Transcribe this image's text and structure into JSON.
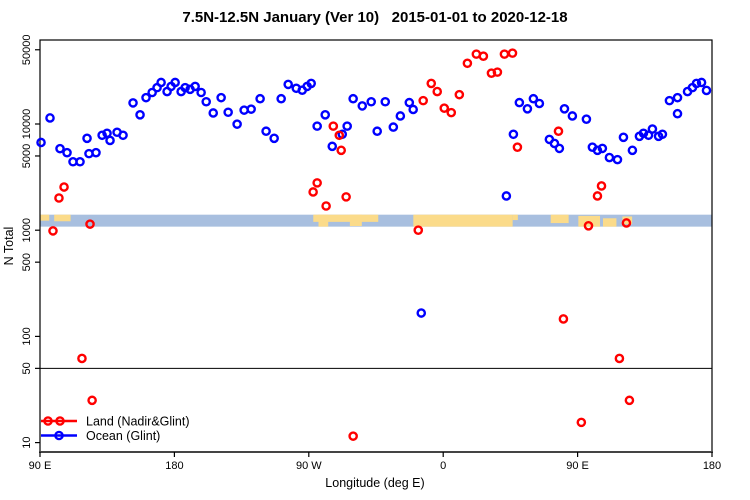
{
  "title": "7.5N-12.5N January (Ver 10)   2015-01-01 to 2020-12-18",
  "chart_data": {
    "type": "scatter",
    "title": "7.5N-12.5N January (Ver 10)   2015-01-01 to 2020-12-18",
    "xlabel": "Longitude (deg E)",
    "ylabel": "N Total",
    "x_axis": {
      "range": [
        90,
        540
      ],
      "tick_values": [
        90,
        180,
        270,
        360,
        450,
        540
      ],
      "tick_labels": [
        "90 E",
        "180",
        "90 W",
        "0",
        "90 E",
        "180"
      ]
    },
    "y_axis": {
      "scale": "log10",
      "range": [
        7,
        64000
      ],
      "tick_values": [
        10,
        50,
        100,
        500,
        1000,
        5000,
        10000,
        50000
      ],
      "tick_labels": [
        "10",
        "50",
        "100",
        "500",
        "1000",
        "5000",
        "10000",
        "50000"
      ]
    },
    "grid": "off",
    "reference_line_n": 50,
    "map_band": {
      "description": "world-map strip for latitude band 7.5N-12.5N",
      "ocean_color": "#a8bfdf",
      "land_color": "#fbdb8a",
      "n_range": [
        1080,
        1400
      ],
      "land_patches": [
        {
          "lon": [
            90,
            96.2
          ],
          "v": [
            0,
            0.5
          ]
        },
        {
          "lon": [
            99.5,
            110.5
          ],
          "v": [
            0,
            0.55
          ]
        },
        {
          "lon": [
            273,
            316.5
          ],
          "v": [
            0,
            0.6
          ]
        },
        {
          "lon": [
            276.5,
            283
          ],
          "v": [
            0,
            1
          ]
        },
        {
          "lon": [
            297.5,
            305.5
          ],
          "v": [
            0,
            0.95
          ]
        },
        {
          "lon": [
            340,
            406.5
          ],
          "v": [
            0,
            1
          ]
        },
        {
          "lon": [
            406.5,
            410
          ],
          "v": [
            0,
            0.45
          ]
        },
        {
          "lon": [
            432,
            444
          ],
          "v": [
            0,
            0.7
          ]
        },
        {
          "lon": [
            450.5,
            465
          ],
          "v": [
            0.1,
            1
          ]
        },
        {
          "lon": [
            467,
            476
          ],
          "v": [
            0.3,
            1
          ]
        },
        {
          "lon": [
            480,
            486.5
          ],
          "v": [
            0.15,
            0.8
          ]
        }
      ]
    },
    "legend": {
      "position": "bottom-left"
    },
    "series": [
      {
        "name": "Ocean (Glint)",
        "color": "#0000ff",
        "points": [
          [
            90.7,
            6700
          ],
          [
            96.7,
            11400
          ],
          [
            103.4,
            5860
          ],
          [
            108.1,
            5370
          ],
          [
            112.1,
            4410
          ],
          [
            116.8,
            4410
          ],
          [
            121.5,
            7330
          ],
          [
            122.8,
            5260
          ],
          [
            127.5,
            5370
          ],
          [
            131.6,
            7830
          ],
          [
            134.9,
            8180
          ],
          [
            136.9,
            7000
          ],
          [
            141.6,
            8360
          ],
          [
            145.6,
            7830
          ],
          [
            152.3,
            15800
          ],
          [
            157.0,
            12200
          ],
          [
            161.0,
            17700
          ],
          [
            165.1,
            19800
          ],
          [
            168.4,
            22000
          ],
          [
            171.1,
            24600
          ],
          [
            175.1,
            20200
          ],
          [
            177.8,
            22600
          ],
          [
            180.5,
            24600
          ],
          [
            184.5,
            20200
          ],
          [
            187.2,
            22000
          ],
          [
            190.5,
            21200
          ],
          [
            193.9,
            22600
          ],
          [
            197.9,
            19800
          ],
          [
            201.3,
            16200
          ],
          [
            206.0,
            12700
          ],
          [
            211.3,
            17700
          ],
          [
            216.0,
            12900
          ],
          [
            222.0,
            9970
          ],
          [
            226.7,
            13500
          ],
          [
            231.4,
            13800
          ],
          [
            237.4,
            17300
          ],
          [
            241.4,
            8550
          ],
          [
            246.8,
            7330
          ],
          [
            251.5,
            17300
          ],
          [
            256.2,
            23600
          ],
          [
            261.6,
            21700
          ],
          [
            265.6,
            20800
          ],
          [
            268.9,
            22600
          ],
          [
            271.6,
            24100
          ],
          [
            275.6,
            9550
          ],
          [
            281.0,
            12200
          ],
          [
            285.7,
            6160
          ],
          [
            292.4,
            8000
          ],
          [
            295.7,
            9550
          ],
          [
            299.7,
            17300
          ],
          [
            305.8,
            14800
          ],
          [
            311.8,
            16200
          ],
          [
            315.8,
            8550
          ],
          [
            321.2,
            16200
          ],
          [
            326.6,
            9350
          ],
          [
            331.3,
            11900
          ],
          [
            337.3,
            15900
          ],
          [
            339.9,
            13700
          ],
          [
            345.3,
            166
          ],
          [
            402.3,
            2100
          ],
          [
            407.0,
            8000
          ],
          [
            411.0,
            15900
          ],
          [
            416.4,
            13900
          ],
          [
            420.4,
            17300
          ],
          [
            424.4,
            15600
          ],
          [
            431.1,
            7160
          ],
          [
            434.5,
            6560
          ],
          [
            437.8,
            5890
          ],
          [
            441.2,
            13900
          ],
          [
            446.5,
            11900
          ],
          [
            455.9,
            11100
          ],
          [
            459.9,
            6050
          ],
          [
            463.3,
            5650
          ],
          [
            466.6,
            5890
          ],
          [
            471.3,
            4830
          ],
          [
            476.7,
            4620
          ],
          [
            480.7,
            7490
          ],
          [
            486.7,
            5650
          ],
          [
            491.4,
            7660
          ],
          [
            494.1,
            8180
          ],
          [
            497.5,
            7830
          ],
          [
            500.1,
            8960
          ],
          [
            504.2,
            7660
          ],
          [
            506.8,
            8000
          ],
          [
            511.5,
            16600
          ],
          [
            516.9,
            17700
          ],
          [
            516.9,
            12500
          ],
          [
            523.6,
            20200
          ],
          [
            526.9,
            22000
          ],
          [
            529.6,
            24100
          ],
          [
            533.0,
            24600
          ],
          [
            536.3,
            20700
          ]
        ]
      },
      {
        "name": "Land (Nadir&Glint)",
        "color": "#ff0000",
        "points": [
          [
            98.7,
            985
          ],
          [
            102.7,
            2010
          ],
          [
            106.1,
            2550
          ],
          [
            118.1,
            62
          ],
          [
            123.5,
            1140
          ],
          [
            124.9,
            25
          ],
          [
            272.9,
            2290
          ],
          [
            275.6,
            2790
          ],
          [
            281.6,
            1690
          ],
          [
            286.4,
            9550
          ],
          [
            290.4,
            7830
          ],
          [
            291.7,
            5650
          ],
          [
            295.0,
            2060
          ],
          [
            299.7,
            11.5
          ],
          [
            343.3,
            1000
          ],
          [
            346.6,
            16600
          ],
          [
            352.0,
            24100
          ],
          [
            356.0,
            20200
          ],
          [
            360.7,
            14100
          ],
          [
            365.4,
            12800
          ],
          [
            370.8,
            18900
          ],
          [
            376.2,
            37300
          ],
          [
            382.2,
            45500
          ],
          [
            386.9,
            43500
          ],
          [
            392.3,
            30100
          ],
          [
            396.3,
            30800
          ],
          [
            401.0,
            45500
          ],
          [
            406.4,
            46500
          ],
          [
            409.7,
            6050
          ],
          [
            437.2,
            8550
          ],
          [
            440.5,
            146
          ],
          [
            452.5,
            15.5
          ],
          [
            457.3,
            1100
          ],
          [
            463.3,
            2100
          ],
          [
            466.0,
            2610
          ],
          [
            478.0,
            62
          ],
          [
            482.7,
            1170
          ],
          [
            484.7,
            25
          ]
        ]
      }
    ]
  }
}
